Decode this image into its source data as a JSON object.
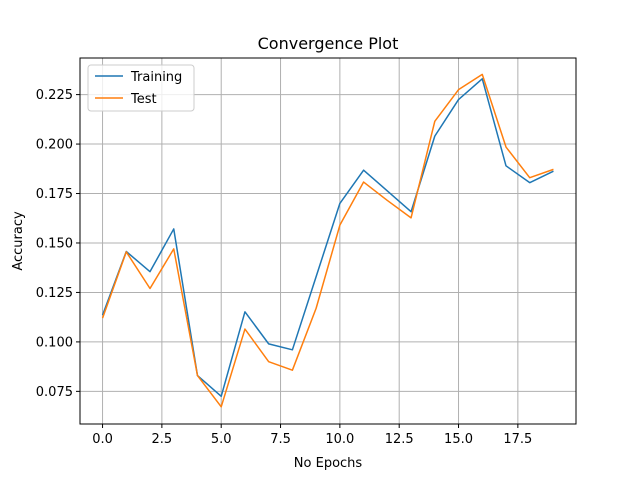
{
  "chart_data": {
    "type": "line",
    "title": "Convergence Plot",
    "xlabel": "No Epochs",
    "ylabel": "Accuracy",
    "xlim": [
      -0.95,
      19.95
    ],
    "ylim": [
      0.0585,
      0.2435
    ],
    "x_ticks": [
      0,
      2.5,
      5,
      7.5,
      10,
      12.5,
      15,
      17.5
    ],
    "x_tick_labels": [
      "0.0",
      "2.5",
      "5.0",
      "7.5",
      "10.0",
      "12.5",
      "15.0",
      "17.5"
    ],
    "y_ticks": [
      0.075,
      0.1,
      0.125,
      0.15,
      0.175,
      0.2,
      0.225
    ],
    "y_tick_labels": [
      "0.075",
      "0.100",
      "0.125",
      "0.150",
      "0.175",
      "0.200",
      "0.225"
    ],
    "grid": true,
    "legend_position": "top-left",
    "x": [
      0,
      1,
      2,
      3,
      4,
      5,
      6,
      7,
      8,
      9,
      10,
      11,
      12,
      13,
      14,
      15,
      16,
      17,
      18,
      19
    ],
    "series": [
      {
        "name": "Training",
        "color": "#1f77b4",
        "values": [
          0.1135,
          0.1457,
          0.1355,
          0.1571,
          0.083,
          0.0725,
          0.1152,
          0.099,
          0.096,
          0.133,
          0.17,
          0.1868,
          0.1763,
          0.1658,
          0.204,
          0.2225,
          0.233,
          0.189,
          0.1805,
          0.1863
        ]
      },
      {
        "name": "Test",
        "color": "#ff7f0e",
        "values": [
          0.112,
          0.1455,
          0.127,
          0.147,
          0.083,
          0.0672,
          0.1065,
          0.09,
          0.0857,
          0.117,
          0.159,
          0.1808,
          0.1715,
          0.1627,
          0.2115,
          0.2275,
          0.2352,
          0.1985,
          0.183,
          0.1872
        ]
      }
    ]
  }
}
